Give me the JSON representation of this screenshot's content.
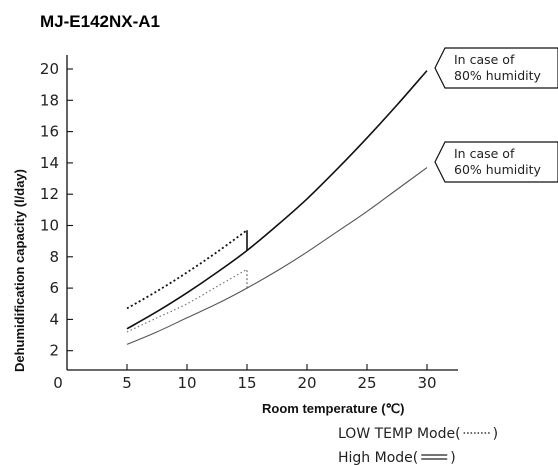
{
  "chart_data": {
    "type": "line",
    "title": "MJ-E142NX-A1",
    "xlabel": "Room temperature (℃)",
    "ylabel": "Dehumidification capacity (l/day)",
    "xlim": [
      0,
      30
    ],
    "ylim": [
      0,
      21
    ],
    "x_ticks": [
      0,
      5,
      10,
      15,
      20,
      25,
      30
    ],
    "y_ticks": [
      2,
      4,
      6,
      8,
      10,
      12,
      14,
      16,
      18,
      20
    ],
    "grid": false,
    "series": [
      {
        "name": "In case of 80% humidity",
        "style": "solid",
        "x": [
          5,
          7.5,
          10,
          12.5,
          15,
          17.5,
          20,
          22.5,
          25,
          27.5,
          30
        ],
        "y": [
          3.4,
          4.5,
          5.7,
          7.0,
          8.4,
          10.0,
          11.7,
          13.6,
          15.6,
          17.7,
          19.9
        ]
      },
      {
        "name": "In case of 60% humidity",
        "style": "solid",
        "x": [
          5,
          7.5,
          10,
          12.5,
          15,
          17.5,
          20,
          22.5,
          25,
          27.5,
          30
        ],
        "y": [
          2.4,
          3.2,
          4.1,
          5.0,
          6.0,
          7.1,
          8.3,
          9.6,
          10.9,
          12.3,
          13.7
        ]
      },
      {
        "name": "LOW TEMP Mode (80% humidity)",
        "style": "dotted",
        "x": [
          5,
          7.5,
          10,
          12.5,
          15
        ],
        "y": [
          4.7,
          5.8,
          7.0,
          8.3,
          9.7
        ]
      },
      {
        "name": "LOW TEMP Mode (60% humidity)",
        "style": "dotted",
        "x": [
          5,
          7.5,
          10,
          12.5,
          15
        ],
        "y": [
          3.2,
          4.1,
          5.0,
          6.1,
          7.2
        ]
      }
    ],
    "annotations": [
      {
        "line1": "In case of",
        "line2": "80% humidity",
        "anchor_x": 30,
        "anchor_y": 19.9
      },
      {
        "line1": "In case of",
        "line2": "60% humidity",
        "anchor_x": 30,
        "anchor_y": 13.7
      }
    ],
    "legend": [
      {
        "label": "LOW TEMP Mode(",
        "close": ")",
        "symbol": "dotted"
      },
      {
        "label": "High Mode(",
        "close": ")",
        "symbol": "double"
      }
    ]
  }
}
